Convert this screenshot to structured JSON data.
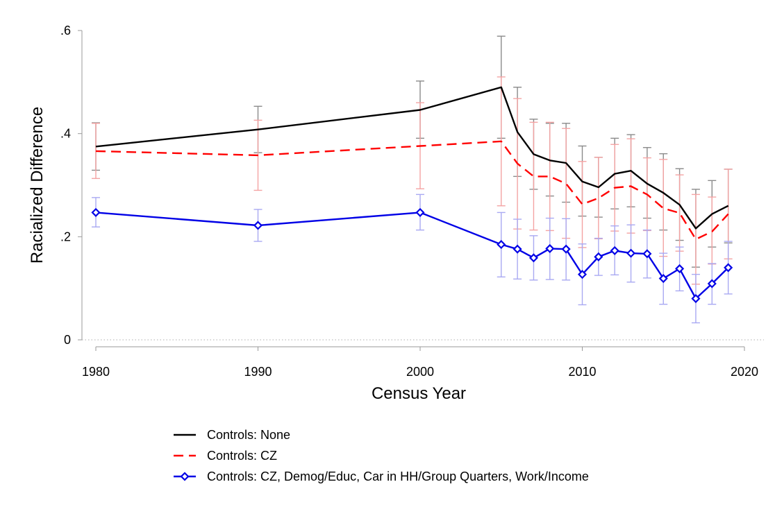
{
  "chart_data": {
    "type": "line",
    "xlabel": "Census Year",
    "ylabel": "Racialized Difference",
    "xlim": [
      1980,
      2020
    ],
    "ylim": [
      0,
      0.6
    ],
    "x_ticks": [
      1980,
      1990,
      2000,
      2010,
      2020
    ],
    "x_tick_labels": [
      "1980",
      "1990",
      "2000",
      "2010",
      "2020"
    ],
    "y_ticks": [
      0,
      0.2,
      0.4,
      0.6
    ],
    "y_tick_labels": [
      "0",
      ".2",
      ".4",
      ".6"
    ],
    "zero_line": "dotted",
    "legend_position": "bottom",
    "series": [
      {
        "name": "Controls: None",
        "color": "#000000",
        "ci_color": "#8a8a8a",
        "line_style": "solid",
        "marker": "none",
        "x": [
          1980,
          1990,
          2000,
          2005,
          2006,
          2007,
          2008,
          2009,
          2010,
          2011,
          2012,
          2013,
          2014,
          2015,
          2016,
          2017,
          2018,
          2019
        ],
        "values": [
          0.375,
          0.408,
          0.446,
          0.49,
          0.403,
          0.36,
          0.348,
          0.343,
          0.307,
          0.296,
          0.322,
          0.328,
          0.303,
          0.285,
          0.262,
          0.216,
          0.244,
          0.26
        ],
        "ci_low": [
          0.329,
          0.363,
          0.391,
          0.391,
          0.317,
          0.292,
          0.279,
          0.267,
          0.24,
          0.238,
          0.254,
          0.258,
          0.236,
          0.213,
          0.193,
          0.141,
          0.18,
          0.188
        ],
        "ci_high": [
          0.421,
          0.453,
          0.502,
          0.589,
          0.49,
          0.428,
          0.42,
          0.42,
          0.376,
          0.354,
          0.391,
          0.398,
          0.373,
          0.361,
          0.332,
          0.292,
          0.309,
          0.331
        ]
      },
      {
        "name": "Controls: CZ",
        "color": "#ff0000",
        "ci_color": "#f4a3a3",
        "line_style": "dashed",
        "marker": "none",
        "x": [
          1980,
          1990,
          2000,
          2005,
          2006,
          2007,
          2008,
          2009,
          2010,
          2011,
          2012,
          2013,
          2014,
          2015,
          2016,
          2017,
          2018,
          2019
        ],
        "values": [
          0.366,
          0.358,
          0.376,
          0.385,
          0.342,
          0.317,
          0.317,
          0.303,
          0.263,
          0.275,
          0.295,
          0.298,
          0.282,
          0.255,
          0.246,
          0.195,
          0.21,
          0.244
        ],
        "ci_low": [
          0.313,
          0.29,
          0.293,
          0.26,
          0.215,
          0.213,
          0.212,
          0.197,
          0.179,
          0.196,
          0.211,
          0.207,
          0.212,
          0.162,
          0.172,
          0.108,
          0.147,
          0.157
        ],
        "ci_high": [
          0.42,
          0.426,
          0.46,
          0.51,
          0.468,
          0.422,
          0.422,
          0.41,
          0.346,
          0.354,
          0.379,
          0.39,
          0.353,
          0.35,
          0.32,
          0.282,
          0.277,
          0.331
        ]
      },
      {
        "name": "Controls: CZ, Demog/Educ, Car in HH/Group Quarters, Work/Income",
        "color": "#0000e6",
        "ci_color": "#a9a9f2",
        "line_style": "solid",
        "marker": "diamond",
        "x": [
          1980,
          1990,
          2000,
          2005,
          2006,
          2007,
          2008,
          2009,
          2010,
          2011,
          2012,
          2013,
          2014,
          2015,
          2016,
          2017,
          2018,
          2019
        ],
        "values": [
          0.247,
          0.222,
          0.247,
          0.185,
          0.176,
          0.159,
          0.177,
          0.176,
          0.127,
          0.161,
          0.173,
          0.168,
          0.167,
          0.119,
          0.138,
          0.08,
          0.109,
          0.14
        ],
        "ci_low": [
          0.219,
          0.191,
          0.213,
          0.122,
          0.118,
          0.116,
          0.117,
          0.116,
          0.068,
          0.125,
          0.126,
          0.112,
          0.12,
          0.069,
          0.095,
          0.033,
          0.069,
          0.089
        ],
        "ci_high": [
          0.276,
          0.253,
          0.282,
          0.247,
          0.234,
          0.202,
          0.236,
          0.235,
          0.186,
          0.197,
          0.221,
          0.223,
          0.213,
          0.168,
          0.18,
          0.127,
          0.148,
          0.191
        ]
      }
    ]
  }
}
